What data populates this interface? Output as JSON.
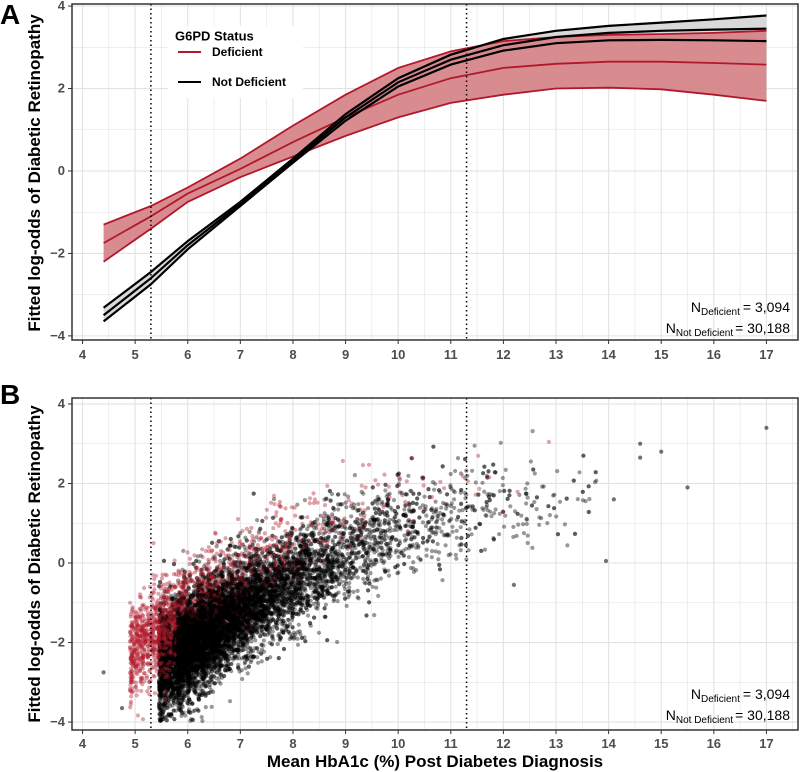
{
  "colors": {
    "deficient": "#b2182b",
    "deficient_fill": "#d47f84",
    "not_deficient": "#000000",
    "not_deficient_fill": "#d9d9d9",
    "grid": "#e3e3e3",
    "frame": "#333333"
  },
  "x_axis_label": "Mean HbA1c (%) Post Diabetes Diagnosis",
  "chart_data": [
    {
      "panel": "A",
      "type": "line",
      "ylabel": "Fitted log-odds of Diabetic Retinopathy",
      "xlabel": "",
      "xlim": [
        3.8,
        17.6
      ],
      "ylim": [
        -4.1,
        4.05
      ],
      "xticks": [
        "4",
        "5",
        "6",
        "7",
        "8",
        "9",
        "10",
        "11",
        "12",
        "13",
        "14",
        "15",
        "16",
        "17"
      ],
      "yticks": [
        "−4",
        "−2",
        "0",
        "2",
        "4"
      ],
      "grid": true,
      "reference_lines_x": [
        5.3,
        11.3
      ],
      "legend": {
        "title": "G6PD Status",
        "placement": "top-left",
        "entries": [
          "Deficient",
          "Not Deficient"
        ]
      },
      "x": [
        4.4,
        5.3,
        6,
        7,
        8,
        9,
        10,
        11,
        12,
        13,
        14,
        15,
        16,
        17
      ],
      "series": [
        {
          "name": "Deficient",
          "color": "#b2182b",
          "fit": [
            -1.75,
            -1.1,
            -0.55,
            0.05,
            0.7,
            1.3,
            1.85,
            2.25,
            2.5,
            2.6,
            2.65,
            2.65,
            2.62,
            2.58
          ],
          "upper": [
            -1.3,
            -0.85,
            -0.4,
            0.3,
            1.1,
            1.85,
            2.5,
            2.9,
            3.15,
            3.25,
            3.3,
            3.32,
            3.35,
            3.4
          ],
          "lower": [
            -2.2,
            -1.4,
            -0.75,
            -0.15,
            0.35,
            0.85,
            1.3,
            1.65,
            1.85,
            2.0,
            2.02,
            1.98,
            1.85,
            1.7
          ]
        },
        {
          "name": "Not Deficient",
          "color": "#000000",
          "fit": [
            -3.5,
            -2.6,
            -1.8,
            -0.8,
            0.25,
            1.3,
            2.15,
            2.7,
            3.05,
            3.25,
            3.35,
            3.4,
            3.43,
            3.45
          ],
          "upper": [
            -3.32,
            -2.45,
            -1.7,
            -0.75,
            0.3,
            1.38,
            2.25,
            2.82,
            3.2,
            3.4,
            3.52,
            3.6,
            3.68,
            3.77
          ],
          "lower": [
            -3.65,
            -2.75,
            -1.9,
            -0.85,
            0.2,
            1.22,
            2.05,
            2.58,
            2.92,
            3.1,
            3.17,
            3.18,
            3.17,
            3.15
          ]
        }
      ],
      "annotation": {
        "n_deficient_label": "N",
        "n_deficient_sub": "Deficient",
        "n_deficient_value": "=   3,094",
        "n_not_label": "N",
        "n_not_sub": "Not Deficient",
        "n_not_value": "= 30,188"
      }
    },
    {
      "panel": "B",
      "type": "scatter",
      "ylabel": "Fitted log-odds of Diabetic Retinopathy",
      "xlabel": "Mean HbA1c (%) Post Diabetes Diagnosis",
      "xlim": [
        3.8,
        17.6
      ],
      "ylim": [
        -4.2,
        4.15
      ],
      "xticks": [
        "4",
        "5",
        "6",
        "7",
        "8",
        "9",
        "10",
        "11",
        "12",
        "13",
        "14",
        "15",
        "16",
        "17"
      ],
      "yticks": [
        "−4",
        "−2",
        "0",
        "2",
        "4"
      ],
      "grid": true,
      "reference_lines_x": [
        5.3,
        11.3
      ],
      "series": [
        {
          "name": "Not Deficient",
          "color": "#000000",
          "n": 30188
        },
        {
          "name": "Deficient",
          "color": "#b2182b",
          "n": 3094
        }
      ],
      "outlier_points": [
        {
          "x": 17.0,
          "y": 3.4
        },
        {
          "x": 15.0,
          "y": 2.8
        },
        {
          "x": 14.6,
          "y": 3.0
        },
        {
          "x": 14.6,
          "y": 2.65
        },
        {
          "x": 15.5,
          "y": 1.9
        },
        {
          "x": 13.95,
          "y": 0.05
        },
        {
          "x": 14.1,
          "y": 1.6
        },
        {
          "x": 4.4,
          "y": -2.75
        },
        {
          "x": 4.75,
          "y": -3.65
        },
        {
          "x": 12.2,
          "y": -0.55
        }
      ],
      "annotation": {
        "n_deficient_label": "N",
        "n_deficient_sub": "Deficient",
        "n_deficient_value": "=   3,094",
        "n_not_label": "N",
        "n_not_sub": "Not Deficient",
        "n_not_value": "= 30,188"
      }
    }
  ]
}
